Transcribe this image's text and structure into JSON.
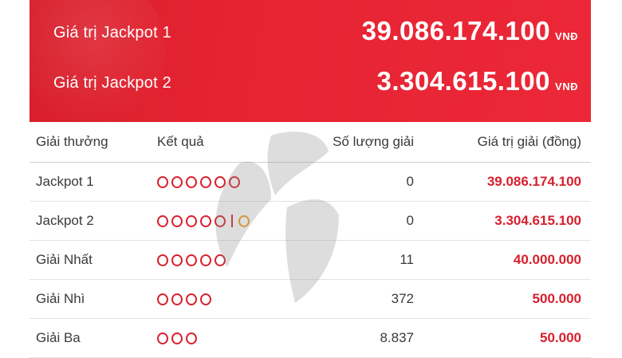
{
  "jackpots": [
    {
      "label": "Giá trị Jackpot 1",
      "value": "39.086.174.100",
      "unit": "VNĐ"
    },
    {
      "label": "Giá trị Jackpot 2",
      "value": "3.304.615.100",
      "unit": "VNĐ"
    }
  ],
  "table": {
    "headers": {
      "prize": "Giải thưởng",
      "result": "Kết quả",
      "count": "Số lượng giải",
      "value": "Giá trị giải (đồng)"
    },
    "rows": [
      {
        "prize": "Jackpot 1",
        "balls": 6,
        "special": 0,
        "count": "0",
        "value": "39.086.174.100"
      },
      {
        "prize": "Jackpot 2",
        "balls": 5,
        "special": 1,
        "count": "0",
        "value": "3.304.615.100"
      },
      {
        "prize": "Giải Nhất",
        "balls": 5,
        "special": 0,
        "count": "11",
        "value": "40.000.000"
      },
      {
        "prize": "Giải Nhì",
        "balls": 4,
        "special": 0,
        "count": "372",
        "value": "500.000"
      },
      {
        "prize": "Giải Ba",
        "balls": 3,
        "special": 0,
        "count": "8.837",
        "value": "50.000"
      }
    ]
  },
  "colors": {
    "header_red": "#e52331",
    "ball_red": "#d9202d",
    "ball_special": "#f29a1c",
    "value_red": "#d6202e"
  },
  "icons": {
    "ball": "ball-icon",
    "special_ball": "special-ball-icon",
    "watermark": "logo-watermark"
  }
}
